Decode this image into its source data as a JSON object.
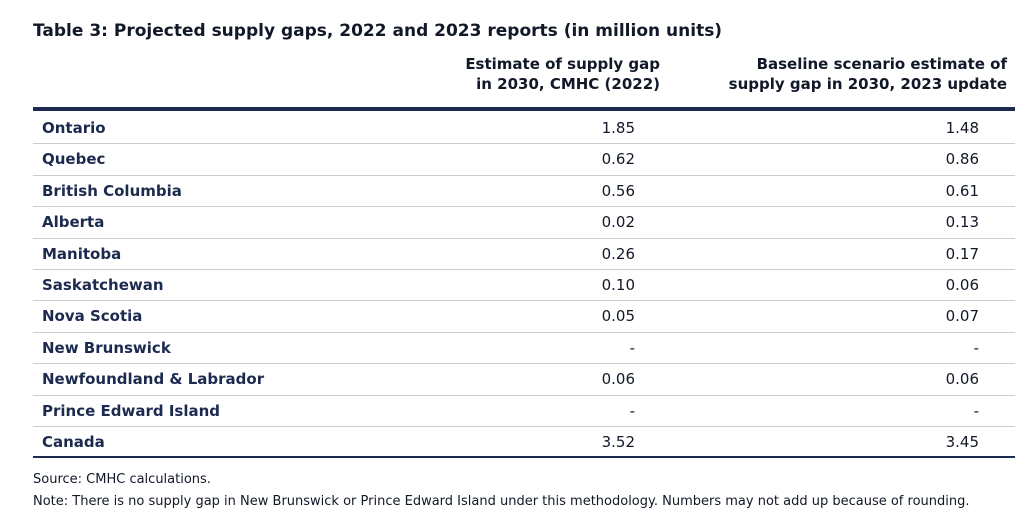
{
  "title": "Table 3: Projected supply gaps, 2022 and 2023 reports (in million units)",
  "columns": {
    "col1_line1": "Estimate of supply gap",
    "col1_line2": "in 2030, CMHC (2022)",
    "col2_line1": "Baseline scenario estimate of",
    "col2_line2": "supply gap in 2030, 2023 update"
  },
  "rows": [
    {
      "name": "Ontario",
      "v1": "1.85",
      "v2": "1.48"
    },
    {
      "name": "Quebec",
      "v1": "0.62",
      "v2": "0.86"
    },
    {
      "name": "British Columbia",
      "v1": "0.56",
      "v2": "0.61"
    },
    {
      "name": "Alberta",
      "v1": "0.02",
      "v2": "0.13"
    },
    {
      "name": "Manitoba",
      "v1": "0.26",
      "v2": "0.17"
    },
    {
      "name": "Saskatchewan",
      "v1": "0.10",
      "v2": "0.06"
    },
    {
      "name": "Nova Scotia",
      "v1": "0.05",
      "v2": "0.07"
    },
    {
      "name": "New Brunswick",
      "v1": "-",
      "v2": "-"
    },
    {
      "name": "Newfoundland & Labrador",
      "v1": "0.06",
      "v2": "0.06"
    },
    {
      "name": "Prince Edward Island",
      "v1": "-",
      "v2": "-"
    },
    {
      "name": "Canada",
      "v1": "3.52",
      "v2": "3.45"
    }
  ],
  "footer": {
    "source": "Source: CMHC calculations.",
    "note": "Note: There is no supply gap in New Brunswick or Prince Edward Island under this methodology. Numbers may not add up because of rounding."
  }
}
